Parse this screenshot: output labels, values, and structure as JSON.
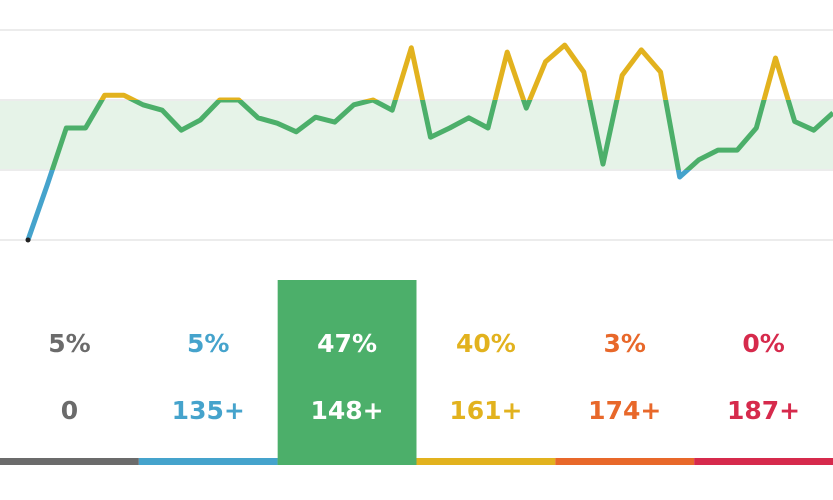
{
  "chart_data": {
    "type": "line",
    "values": [
      135,
      145.2,
      155.8,
      155.8,
      161.9,
      161.9,
      160.1,
      159.1,
      155.4,
      157.3,
      161,
      161,
      157.7,
      156.7,
      155.1,
      157.8,
      156.9,
      160.1,
      161,
      159.1,
      170.7,
      154.1,
      155.8,
      157.7,
      155.8,
      169.9,
      159.5,
      168.1,
      171.2,
      166.2,
      149.1,
      165.6,
      170.3,
      166.2,
      146.7,
      149.9,
      151.7,
      151.7,
      155.8,
      168.8,
      157.0,
      155.4,
      158.6
    ],
    "ylim": [
      135,
      174
    ],
    "yticks": [
      135,
      148,
      161,
      174
    ],
    "grid": true,
    "target_range": [
      148,
      161
    ],
    "band_color": "#e6f3e8",
    "zones": {
      "values": [
        5,
        5,
        47,
        40,
        3,
        0
      ],
      "value_labels": [
        "5%",
        "5%",
        "47%",
        "40%",
        "3%",
        "0%"
      ],
      "thresholds": [
        0,
        {
          "value": 135,
          "label": "135+"
        },
        {
          "value": 148,
          "label": "148+"
        },
        {
          "value": 161,
          "label": "161+"
        },
        {
          "value": 174,
          "label": "174+"
        },
        {
          "value": 187,
          "label": "187+"
        }
      ],
      "colors": [
        "#6b6b6b",
        "#45a3cc",
        "#4caf6a",
        "#e2b21e",
        "#e8682a",
        "#d62a4c"
      ],
      "highlight": 2
    }
  }
}
